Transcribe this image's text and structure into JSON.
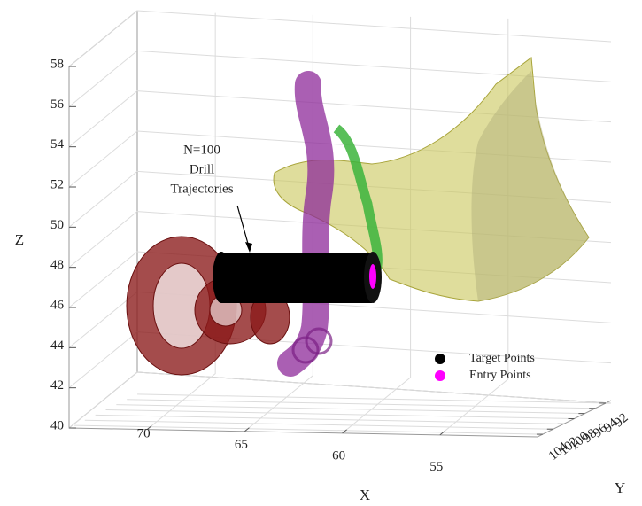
{
  "chart_data": {
    "type": "scatter3d",
    "xlabel": "X",
    "ylabel": "Y",
    "zlabel": "Z",
    "xlim": [
      74,
      50
    ],
    "xticks": [
      55,
      60,
      65,
      70
    ],
    "ylim": [
      105,
      91
    ],
    "yticks": [
      92,
      94,
      96,
      98,
      100,
      102,
      104
    ],
    "zlim": [
      40,
      58
    ],
    "zticks": [
      40,
      42,
      44,
      46,
      48,
      50,
      52,
      54,
      56,
      58
    ],
    "grid": true,
    "annotation": [
      "N=100",
      "Drill",
      "Trajectories"
    ],
    "series": [
      {
        "name": "Target Points",
        "color": "#000000"
      },
      {
        "name": "Entry Points",
        "color": "#ff00ff"
      }
    ]
  }
}
